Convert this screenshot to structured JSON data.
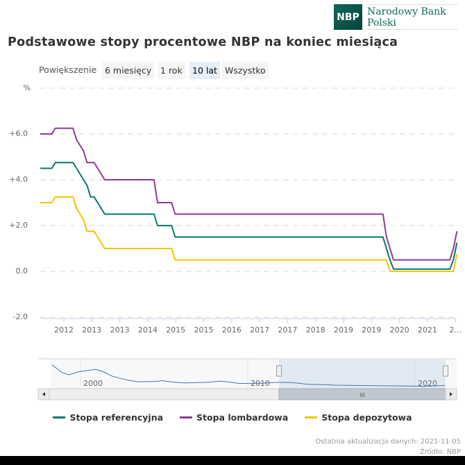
{
  "header": {
    "logo_abbr": "NBP",
    "logo_name": "Narodowy Bank Polski"
  },
  "title": "Podstawowe stopy procentowe NBP na koniec miesiąca",
  "zoom": {
    "label": "Powiększenie",
    "buttons": [
      "6 miesięcy",
      "1 rok",
      "10 lat",
      "Wszystko"
    ],
    "active": "10 lat"
  },
  "colors": {
    "referencyjna": "#00786a",
    "lombardowa": "#8b3a93",
    "depozytowa": "#f5c400",
    "navigator": "#4572a7"
  },
  "chart_data": {
    "type": "line",
    "step_changes": true,
    "y_unit_label": "%",
    "ylim": [
      -2,
      8
    ],
    "yticks": [
      "-2.0",
      "0.0",
      "+2.0",
      "+4.0",
      "+6.0",
      "%"
    ],
    "xlim": [
      "2011-12",
      "2021-11"
    ],
    "xtick_labels": [
      "2012",
      "2013",
      "2013",
      "2014",
      "2015",
      "2015",
      "2016",
      "2017",
      "2017",
      "2018",
      "2019",
      "2019",
      "2020",
      "2021",
      "2..."
    ],
    "grid": "dashed horizontal",
    "legend_position": "bottom",
    "series": [
      {
        "name": "Stopa referencyjna",
        "changes": [
          [
            "2011-12",
            4.5
          ],
          [
            "2012-05",
            4.75
          ],
          [
            "2012-11",
            4.5
          ],
          [
            "2012-12",
            4.25
          ],
          [
            "2013-01",
            4.0
          ],
          [
            "2013-02",
            3.75
          ],
          [
            "2013-03",
            3.25
          ],
          [
            "2013-05",
            3.0
          ],
          [
            "2013-06",
            2.75
          ],
          [
            "2013-07",
            2.5
          ],
          [
            "2014-10",
            2.0
          ],
          [
            "2015-03",
            1.5
          ],
          [
            "2020-03",
            1.0
          ],
          [
            "2020-04",
            0.5
          ],
          [
            "2020-05",
            0.1
          ],
          [
            "2021-10",
            0.5
          ],
          [
            "2021-11",
            1.25
          ]
        ]
      },
      {
        "name": "Stopa lombardowa",
        "changes": [
          [
            "2011-12",
            6.0
          ],
          [
            "2012-05",
            6.25
          ],
          [
            "2012-11",
            5.75
          ],
          [
            "2012-12",
            5.5
          ],
          [
            "2013-01",
            5.25
          ],
          [
            "2013-02",
            4.75
          ],
          [
            "2013-03",
            4.75
          ],
          [
            "2013-05",
            4.5
          ],
          [
            "2013-06",
            4.25
          ],
          [
            "2013-07",
            4.0
          ],
          [
            "2014-10",
            3.0
          ],
          [
            "2015-03",
            2.5
          ],
          [
            "2020-03",
            1.5
          ],
          [
            "2020-04",
            1.0
          ],
          [
            "2020-05",
            0.5
          ],
          [
            "2021-10",
            1.0
          ],
          [
            "2021-11",
            1.75
          ]
        ]
      },
      {
        "name": "Stopa depozytowa",
        "changes": [
          [
            "2011-12",
            3.0
          ],
          [
            "2012-05",
            3.25
          ],
          [
            "2012-11",
            2.75
          ],
          [
            "2012-12",
            2.5
          ],
          [
            "2013-01",
            2.25
          ],
          [
            "2013-02",
            1.75
          ],
          [
            "2013-03",
            1.75
          ],
          [
            "2013-05",
            1.5
          ],
          [
            "2013-06",
            1.25
          ],
          [
            "2013-07",
            1.0
          ],
          [
            "2015-03",
            0.5
          ],
          [
            "2020-03",
            0.5
          ],
          [
            "2020-04",
            0.0
          ],
          [
            "2021-10",
            0.0
          ],
          [
            "2021-11",
            0.75
          ]
        ]
      }
    ],
    "navigator": {
      "xtick_labels": [
        "2000",
        "2010",
        "2020"
      ],
      "selected_range": [
        "2011-12",
        "2021-11"
      ],
      "series": [
        [
          1998.3,
          24
        ],
        [
          1998.9,
          15.5
        ],
        [
          1999.3,
          13
        ],
        [
          1999.9,
          16.5
        ],
        [
          2000.3,
          17.5
        ],
        [
          2000.9,
          19
        ],
        [
          2001.3,
          17
        ],
        [
          2001.9,
          11.5
        ],
        [
          2002.5,
          8.5
        ],
        [
          2003.0,
          6.5
        ],
        [
          2003.5,
          5.25
        ],
        [
          2004.5,
          5.75
        ],
        [
          2004.9,
          6.5
        ],
        [
          2005.5,
          5.0
        ],
        [
          2006.2,
          4.0
        ],
        [
          2007.5,
          4.75
        ],
        [
          2008.4,
          6.0
        ],
        [
          2008.9,
          5.0
        ],
        [
          2009.5,
          3.5
        ],
        [
          2011.0,
          3.75
        ],
        [
          2011.5,
          4.5
        ],
        [
          2012.4,
          4.75
        ],
        [
          2013.0,
          3.75
        ],
        [
          2013.6,
          2.5
        ],
        [
          2014.8,
          2.0
        ],
        [
          2015.2,
          1.5
        ],
        [
          2020.2,
          0.5
        ],
        [
          2020.4,
          0.1
        ],
        [
          2021.8,
          1.25
        ]
      ]
    }
  },
  "legend": [
    "Stopa referencyjna",
    "Stopa lombardowa",
    "Stopa depozytowa"
  ],
  "footer": {
    "updated": "Ostatnia aktualizacja danych: 2021-11-05",
    "source": "Źródło: NBP"
  }
}
